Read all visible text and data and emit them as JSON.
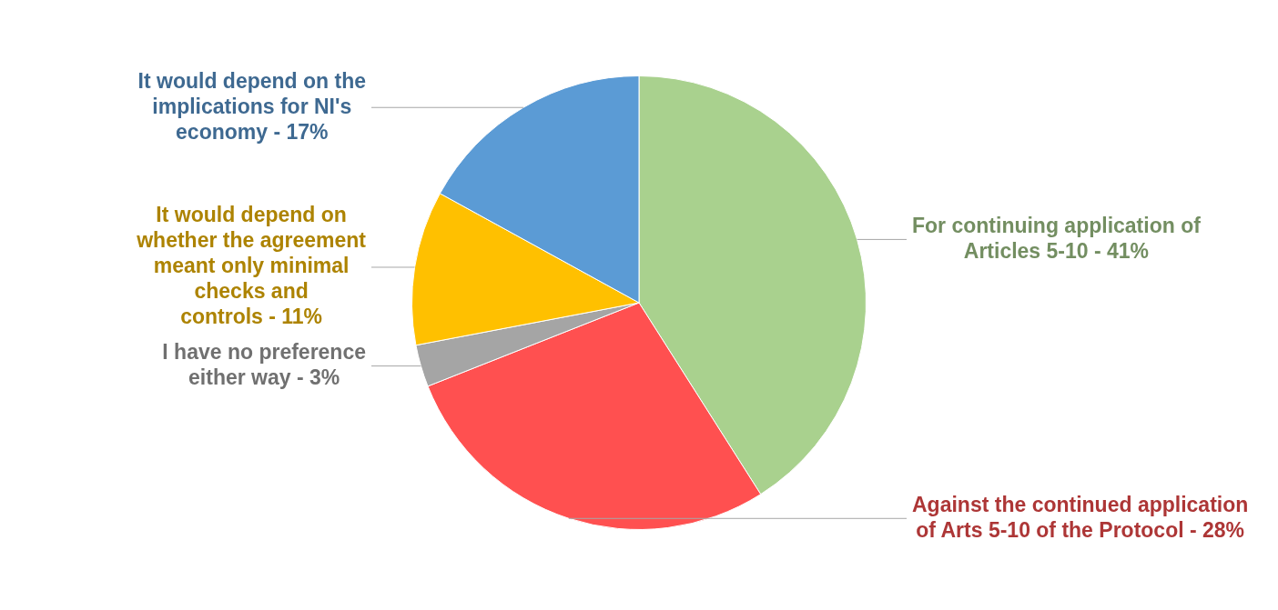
{
  "chart_data": {
    "type": "pie",
    "categories": [
      "For continuing application of Articles 5-10",
      "Against the continued application of Arts 5-10 of the Protocol",
      "I have no preference either way",
      "It would depend on whether the agreement meant only minimal checks and controls",
      "It would depend on the implications for NI's economy"
    ],
    "values": [
      41,
      28,
      3,
      11,
      17
    ],
    "colors": [
      "#a9d18e",
      "#ff5050",
      "#a5a5a5",
      "#ffc000",
      "#5b9bd5"
    ],
    "value_labels": [
      "41%",
      "28%",
      "3%",
      "11%",
      "17%"
    ]
  }
}
